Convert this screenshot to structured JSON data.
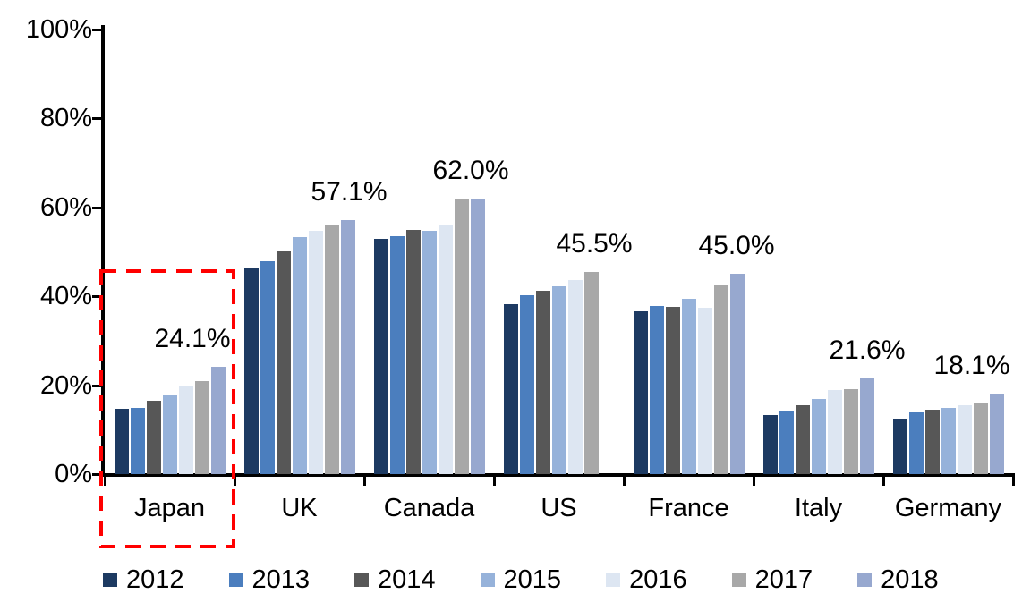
{
  "chart_data": {
    "type": "bar",
    "title": "",
    "categories": [
      "Japan",
      "UK",
      "Canada",
      "US",
      "France",
      "Italy",
      "Germany"
    ],
    "series": [
      {
        "name": "2012",
        "color": "#1d3a62",
        "values": [
          14.6,
          46.3,
          53.0,
          38.3,
          36.6,
          13.2,
          12.5
        ]
      },
      {
        "name": "2013",
        "color": "#4b7ebe",
        "values": [
          14.9,
          47.8,
          53.5,
          40.2,
          37.8,
          14.2,
          14.1
        ]
      },
      {
        "name": "2014",
        "color": "#575757",
        "values": [
          16.4,
          50.0,
          54.9,
          41.2,
          37.7,
          15.4,
          14.4
        ]
      },
      {
        "name": "2015",
        "color": "#96b2da",
        "values": [
          17.9,
          53.3,
          54.7,
          42.3,
          39.5,
          16.9,
          14.9
        ]
      },
      {
        "name": "2016",
        "color": "#dde6f2",
        "values": [
          19.7,
          54.8,
          56.2,
          43.6,
          37.4,
          19.0,
          15.4
        ]
      },
      {
        "name": "2017",
        "color": "#a8a8a8",
        "values": [
          20.9,
          55.9,
          61.7,
          45.5,
          42.4,
          19.2,
          15.9
        ]
      },
      {
        "name": "2018",
        "color": "#97a8cf",
        "values": [
          24.1,
          57.1,
          62.0,
          null,
          45.0,
          21.6,
          18.1
        ]
      }
    ],
    "group_value_labels": [
      "24.1%",
      "57.1%",
      "62.0%",
      "45.5%",
      "45.0%",
      "21.6%",
      "18.1%"
    ],
    "ytick_labels": [
      "0%",
      "20%",
      "40%",
      "60%",
      "80%",
      "100%"
    ],
    "ylim": [
      0,
      100
    ],
    "xlabel": "",
    "ylabel": "",
    "grid": false,
    "legend_position": "bottom",
    "annotation": {
      "type": "dashed-box",
      "target": "Japan",
      "color": "#ff0000"
    },
    "text_color": "#000000",
    "axis_color": "#000000"
  }
}
